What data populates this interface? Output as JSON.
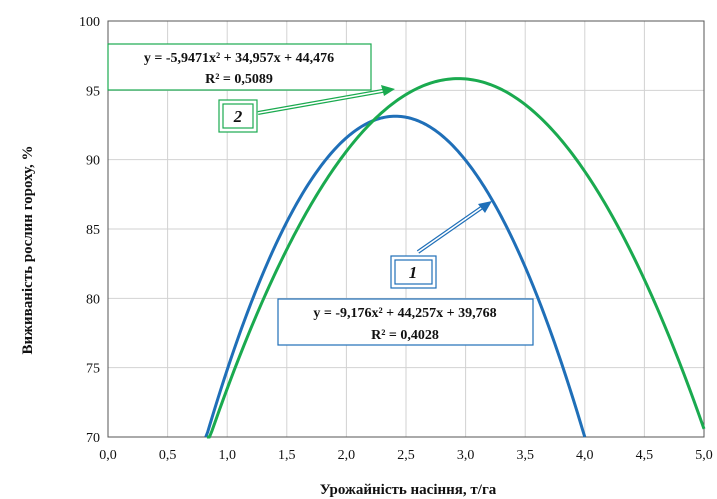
{
  "chart_data": {
    "type": "line",
    "xlabel": "Урожайність насіння, т/га",
    "ylabel": "Виживаність рослин гороху, %",
    "xlim": [
      0,
      5
    ],
    "ylim": [
      70,
      100
    ],
    "x_ticks": [
      "0,0",
      "0,5",
      "1,0",
      "1,5",
      "2,0",
      "2,5",
      "3,0",
      "3,5",
      "4,0",
      "4,5",
      "5,0"
    ],
    "y_ticks": [
      "70",
      "75",
      "80",
      "85",
      "90",
      "95",
      "100"
    ],
    "grid": true,
    "series": [
      {
        "name": "1",
        "color": "#1f6fb8",
        "coefficients": [
          -9.176,
          44.257,
          39.768
        ],
        "equation": "y = -9,176x² + 44,257x + 39,768",
        "r2": "R² = 0,4028",
        "x_range": [
          0.82,
          4.0
        ]
      },
      {
        "name": "2",
        "color": "#1aaa4f",
        "coefficients": [
          -5.9471,
          34.957,
          44.476
        ],
        "equation": "y = -5,9471x² + 34,957x + 44,476",
        "r2": "R² = 0,5089",
        "x_range": [
          0.83,
          5.0
        ]
      }
    ]
  }
}
